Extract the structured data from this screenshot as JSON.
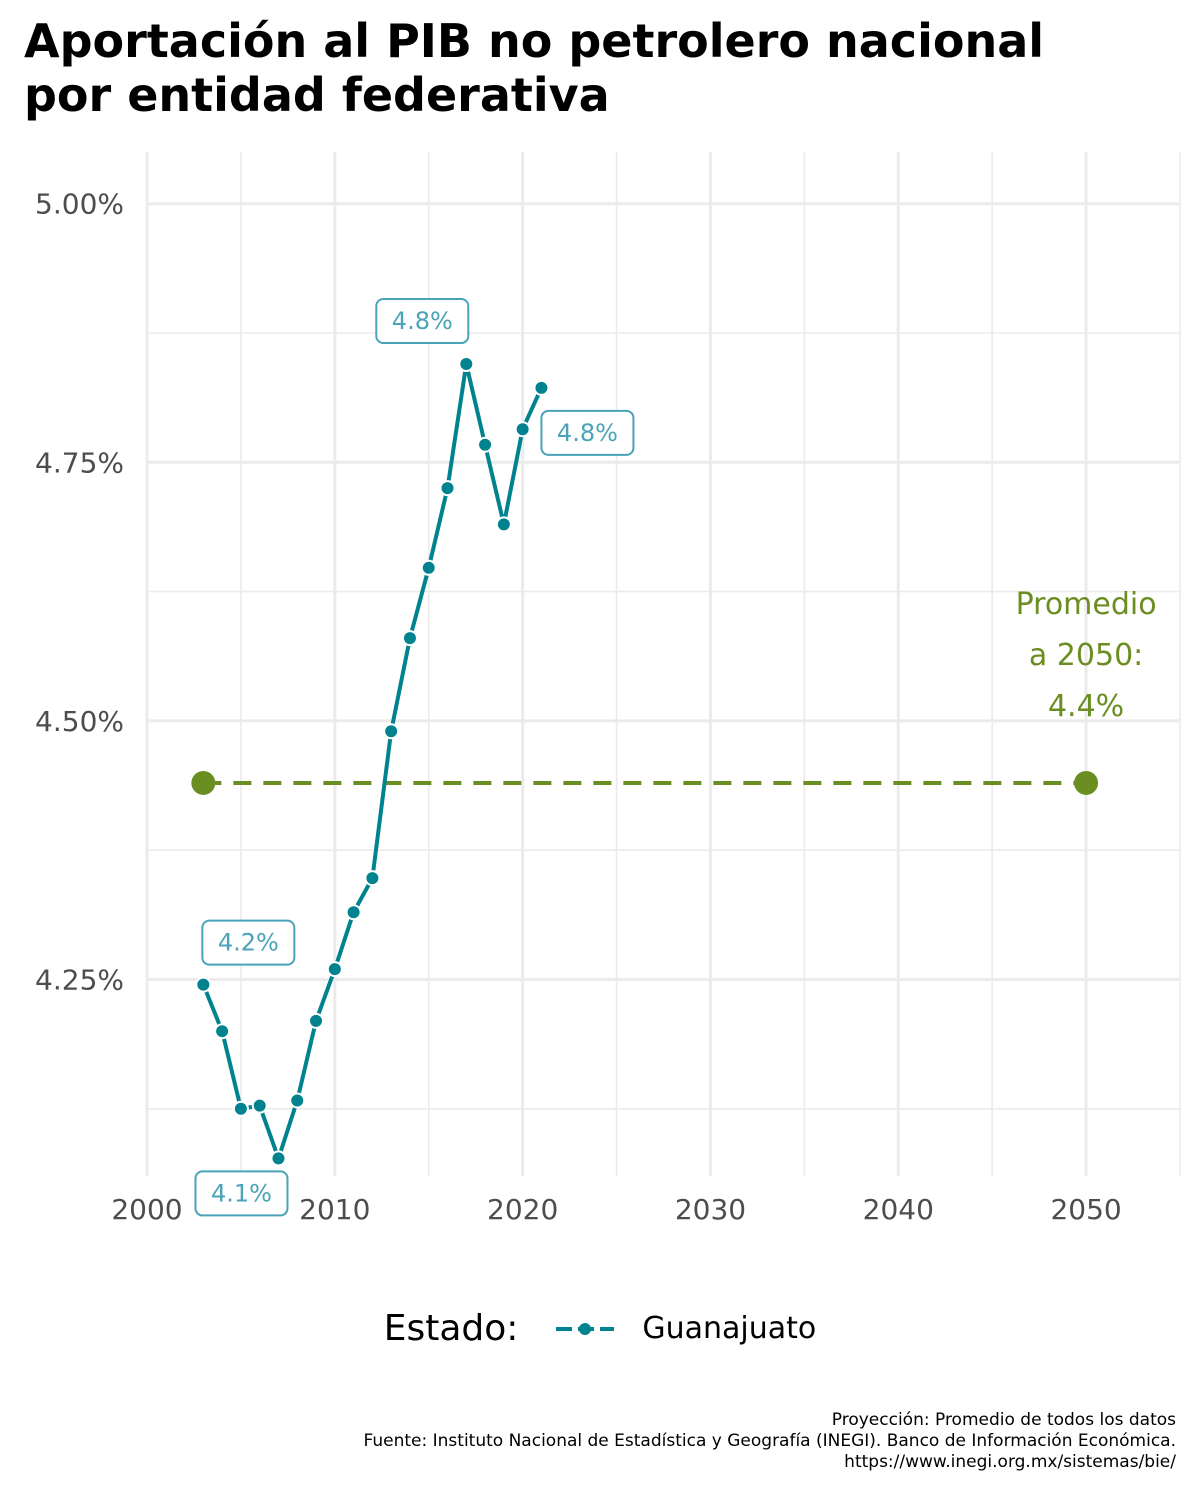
{
  "title_lines": [
    "Aportación al PIB no petrolero nacional",
    "por entidad federativa"
  ],
  "colors": {
    "series": "#00838f",
    "label": "#4aa3b8",
    "average": "#6b8e23",
    "grid": "#ebebeb"
  },
  "chart_data": {
    "type": "line",
    "xlim": [
      2000,
      2055
    ],
    "ylim": [
      4.06,
      5.05
    ],
    "x_ticks": [
      2000,
      2010,
      2020,
      2030,
      2040,
      2050
    ],
    "y_ticks": [
      4.25,
      4.5,
      4.75,
      5.0
    ],
    "y_tick_labels": [
      "4.25%",
      "4.50%",
      "4.75%",
      "5.00%"
    ],
    "grid": true,
    "legend_position": "bottom",
    "series": [
      {
        "name": "Guanajuato",
        "x": [
          2003,
          2004,
          2005,
          2006,
          2007,
          2008,
          2009,
          2010,
          2011,
          2012,
          2013,
          2014,
          2015,
          2016,
          2017,
          2018,
          2019,
          2020,
          2021
        ],
        "y": [
          4.245,
          4.2,
          4.125,
          4.128,
          4.077,
          4.133,
          4.21,
          4.26,
          4.315,
          4.348,
          4.49,
          4.58,
          4.648,
          4.725,
          4.845,
          4.767,
          4.69,
          4.782,
          4.822
        ]
      }
    ],
    "annotations": [
      {
        "x": 2003,
        "y": 4.245,
        "label": "4.2%",
        "position": "above"
      },
      {
        "x": 2007,
        "y": 4.077,
        "label": "4.1%",
        "position": "below-left"
      },
      {
        "x": 2017,
        "y": 4.845,
        "label": "4.8%",
        "position": "above-left"
      },
      {
        "x": 2021,
        "y": 4.822,
        "label": "4.8%",
        "position": "below-right"
      }
    ],
    "average": {
      "value": 4.44,
      "x_start": 2003,
      "x_end": 2050,
      "label_lines": [
        "Promedio",
        "a 2050:",
        "4.4%"
      ]
    }
  },
  "legend": {
    "title": "Estado:",
    "item": "Guanajuato"
  },
  "caption": [
    "Proyección: Promedio de todos los datos",
    "Fuente: Instituto Nacional de Estadística y Geografía (INEGI). Banco de Información Económica.",
    "https://www.inegi.org.mx/sistemas/bie/"
  ]
}
